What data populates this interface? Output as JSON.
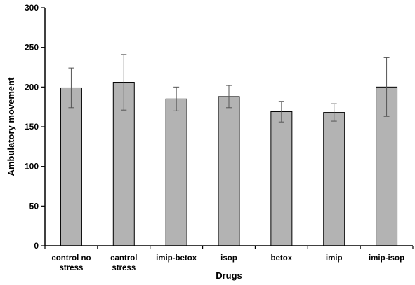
{
  "chart_data": {
    "type": "bar",
    "categories": [
      [
        "control no",
        "stress"
      ],
      [
        "cantrol",
        "stress"
      ],
      [
        "imip-betox"
      ],
      [
        "isop"
      ],
      [
        "betox"
      ],
      [
        "imip"
      ],
      [
        "imip-isop"
      ]
    ],
    "values": [
      199,
      206,
      185,
      188,
      169,
      168,
      200
    ],
    "errors": [
      25,
      35,
      15,
      14,
      13,
      11,
      37
    ],
    "xlabel": "Drugs",
    "ylabel": "Ambulatory movement",
    "ylim": [
      0,
      300
    ],
    "yticks": [
      0,
      50,
      100,
      150,
      200,
      250,
      300
    ],
    "grid": false,
    "bar_color": "#b3b3b3",
    "bar_edge_color": "#000000"
  }
}
